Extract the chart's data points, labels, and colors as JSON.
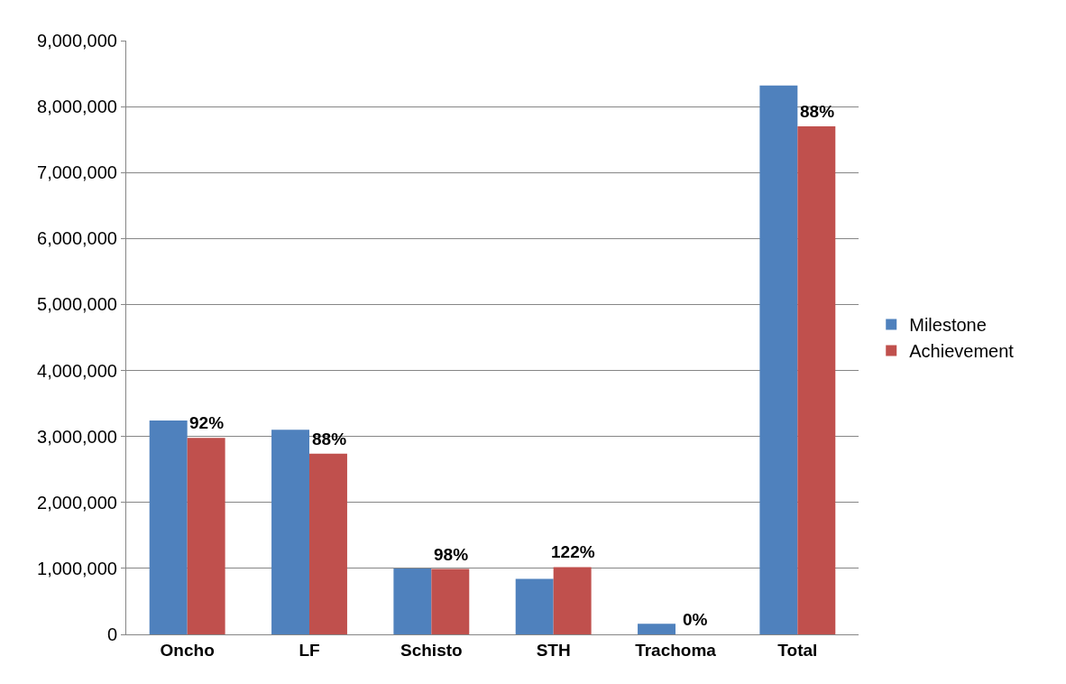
{
  "chart_data": {
    "type": "bar",
    "categories": [
      "Oncho",
      "LF",
      "Schisto",
      "STH",
      "Trachoma",
      "Total"
    ],
    "series": [
      {
        "name": "Milestone",
        "color": "#4f81bd",
        "values": [
          3240000,
          3100000,
          1000000,
          840000,
          160000,
          8320000
        ]
      },
      {
        "name": "Achievement",
        "color": "#c0504d",
        "values": [
          2980000,
          2740000,
          990000,
          1020000,
          0,
          7700000
        ]
      }
    ],
    "annotations": [
      {
        "text": "92%",
        "x": "Oncho",
        "y": 2980000
      },
      {
        "text": "88%",
        "x": "LF",
        "y": 2740000
      },
      {
        "text": "98%",
        "x": "Schisto",
        "y": 990000
      },
      {
        "text": "122%",
        "x": "STH",
        "y": 1020000
      },
      {
        "text": "0%",
        "x": "Trachoma",
        "y": 0
      },
      {
        "text": "88%",
        "x": "Total",
        "y": 7700000
      }
    ],
    "ylim": [
      0,
      9000000
    ],
    "yticks": [
      {
        "value": 0,
        "label": "0"
      },
      {
        "value": 1000000,
        "label": "1,000,000"
      },
      {
        "value": 2000000,
        "label": "2,000,000"
      },
      {
        "value": 3000000,
        "label": "3,000,000"
      },
      {
        "value": 4000000,
        "label": "4,000,000"
      },
      {
        "value": 5000000,
        "label": "5,000,000"
      },
      {
        "value": 6000000,
        "label": "6,000,000"
      },
      {
        "value": 7000000,
        "label": "7,000,000"
      },
      {
        "value": 8000000,
        "label": "8,000,000"
      },
      {
        "value": 9000000,
        "label": "9,000,000"
      }
    ],
    "grid": "y",
    "legend": "right"
  }
}
